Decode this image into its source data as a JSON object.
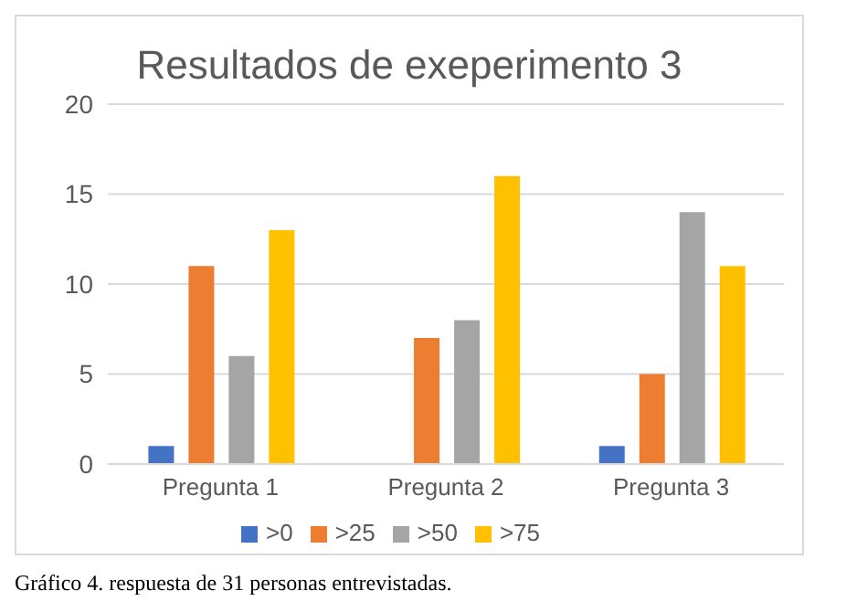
{
  "chart_data": {
    "type": "bar",
    "title": "Resultados de exeperimento 3",
    "categories": [
      "Pregunta 1",
      "Pregunta 2",
      "Pregunta 3"
    ],
    "series": [
      {
        "name": ">0",
        "color": "#4472c4",
        "values": [
          1,
          0,
          1
        ]
      },
      {
        "name": ">25",
        "color": "#ed7d31",
        "values": [
          11,
          7,
          5
        ]
      },
      {
        "name": ">50",
        "color": "#a5a5a5",
        "values": [
          6,
          8,
          14
        ]
      },
      {
        "name": ">75",
        "color": "#ffc000",
        "values": [
          13,
          16,
          11
        ]
      }
    ],
    "ylim": [
      0,
      20
    ],
    "yticks": [
      0,
      5,
      10,
      15,
      20
    ],
    "grid": "y",
    "legend": "bottom",
    "annotations": [
      "Gráfico 4. respuesta de 31 personas entrevistadas."
    ]
  }
}
